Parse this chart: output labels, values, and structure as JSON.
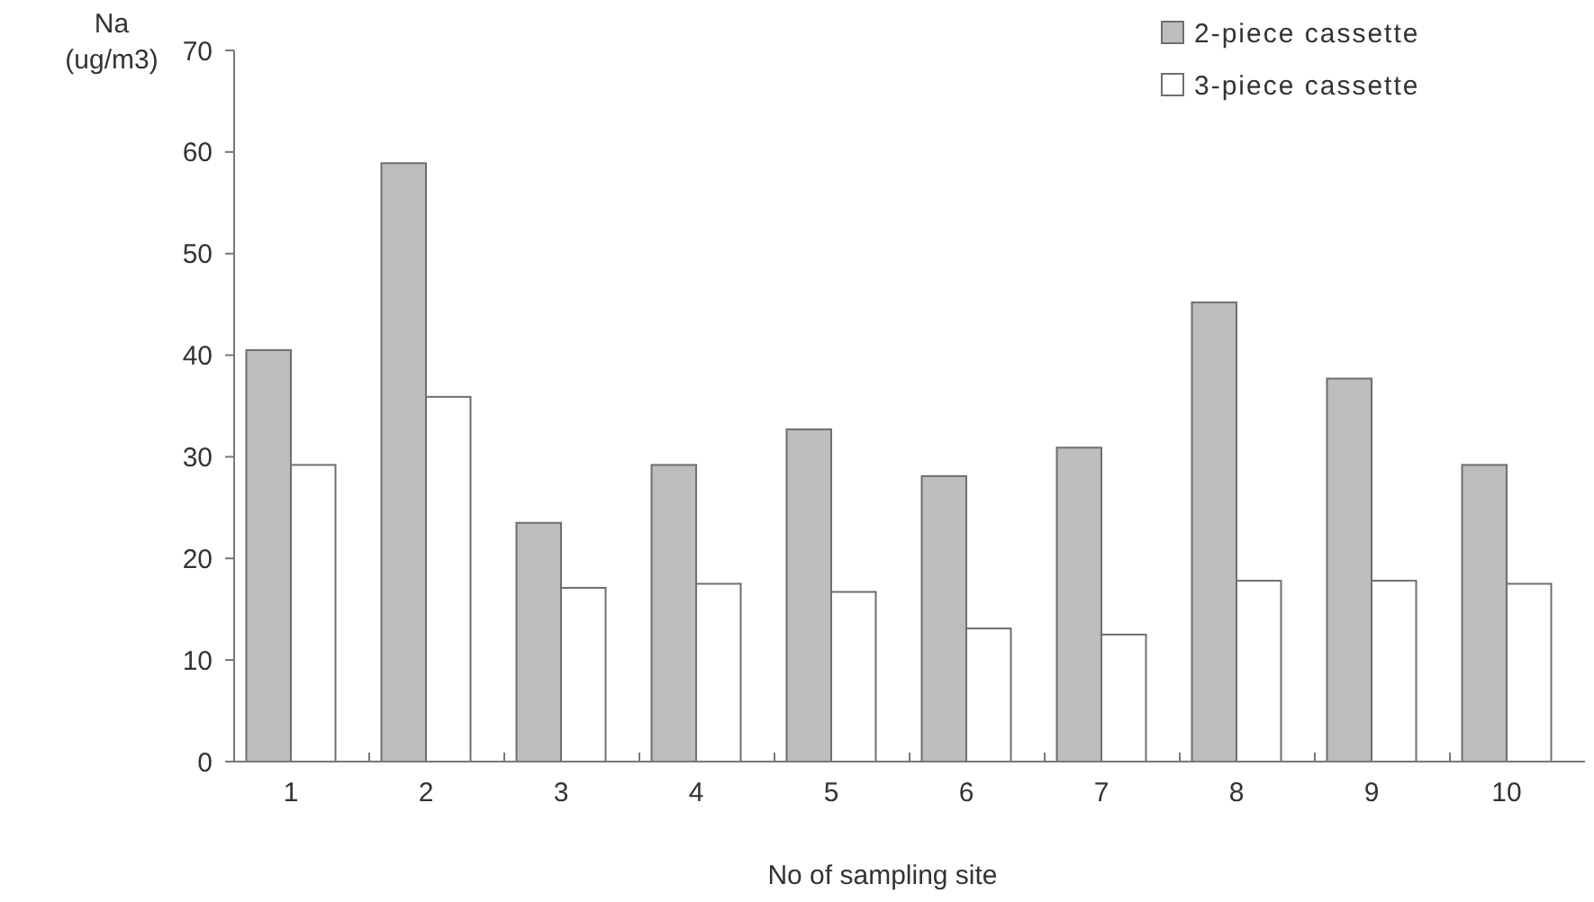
{
  "chart_data": {
    "type": "bar",
    "ylabel": "Na\n(ug/m3)",
    "xlabel": "No of sampling site",
    "categories": [
      "1",
      "2",
      "3",
      "4",
      "5",
      "6",
      "7",
      "8",
      "9",
      "10"
    ],
    "series": [
      {
        "name": "2-piece cassette",
        "color": "#bdbdbd",
        "values": [
          40.5,
          58.9,
          23.5,
          29.2,
          32.7,
          28.1,
          30.9,
          45.2,
          37.7,
          29.2
        ]
      },
      {
        "name": "3-piece cassette",
        "color": "#ffffff",
        "values": [
          29.2,
          35.9,
          17.1,
          17.5,
          16.7,
          13.1,
          12.5,
          17.8,
          17.8,
          17.5
        ]
      }
    ],
    "ylim": [
      0,
      70
    ],
    "yticks": [
      0,
      10,
      20,
      30,
      40,
      50,
      60,
      70
    ],
    "legend": "top right",
    "grid": false
  }
}
